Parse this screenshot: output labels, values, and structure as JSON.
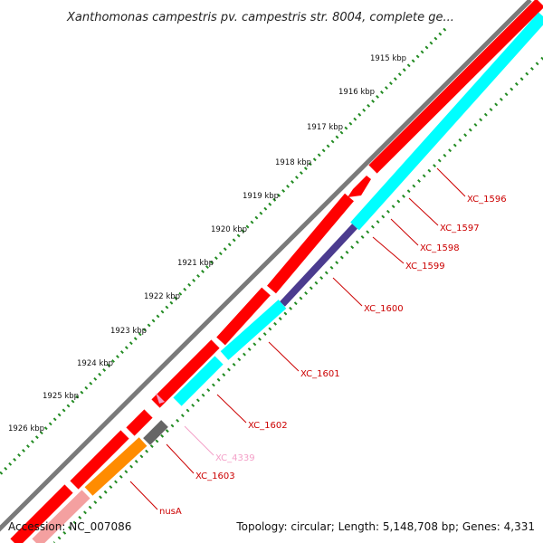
{
  "title": "Xanthomonas campestris pv. campestris str. 8004, complete ge...",
  "footer": {
    "accession": "Accession: NC_007086",
    "summary": "Topology: circular; Length: 5,148,708 bp; Genes: 4,331"
  },
  "kbp_labels": [
    "1915 kbp",
    "1916 kbp",
    "1917 kbp",
    "1918 kbp",
    "1919 kbp",
    "1920 kbp",
    "1921 kbp",
    "1922 kbp",
    "1923 kbp",
    "1924 kbp",
    "1925 kbp",
    "1926 kbp"
  ],
  "gene_labels": [
    {
      "text": "XC_1596",
      "color": "#cc0000"
    },
    {
      "text": "XC_1597",
      "color": "#cc0000"
    },
    {
      "text": "XC_1598",
      "color": "#cc0000"
    },
    {
      "text": "XC_1599",
      "color": "#cc0000"
    },
    {
      "text": "XC_1600",
      "color": "#cc0000"
    },
    {
      "text": "XC_1601",
      "color": "#cc0000"
    },
    {
      "text": "XC_1602",
      "color": "#cc0000"
    },
    {
      "text": "XC_4339",
      "color": "#f4a0c8"
    },
    {
      "text": "XC_1603",
      "color": "#cc0000"
    },
    {
      "text": "nusA",
      "color": "#cc0000"
    }
  ],
  "colors": {
    "backbone": "#7a7a7a",
    "forward_gene": "#ff0000",
    "reverse_gene": "#00ffff",
    "highlight_gene": "#4b3b8f",
    "nusA_gene": "#ff8c00",
    "grey_gene": "#666666",
    "pink_gene": "#f4a0c8",
    "tick_major": "#006600",
    "tick_minor": "#228b22"
  }
}
